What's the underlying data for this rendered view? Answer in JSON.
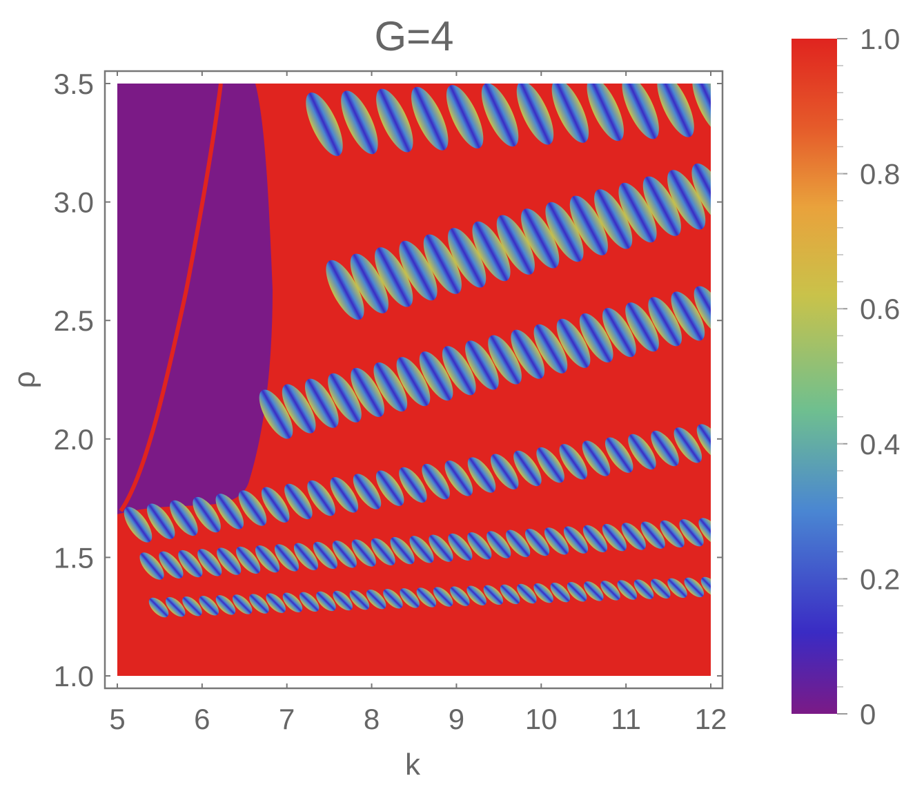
{
  "chart_data": {
    "type": "heatmap",
    "title": "G=4",
    "xlabel": "k",
    "ylabel": "ρ",
    "xlim": [
      5,
      12
    ],
    "ylim": [
      1.0,
      3.5
    ],
    "x_ticks": [
      "5",
      "6",
      "7",
      "8",
      "9",
      "10",
      "11",
      "12"
    ],
    "y_ticks": [
      "1.0",
      "1.5",
      "2.0",
      "2.5",
      "3.0",
      "3.5"
    ],
    "colorbar": {
      "range": [
        0,
        1.0
      ],
      "ticks": [
        "0",
        "0.2",
        "0.4",
        "0.6",
        "0.8",
        "1.0"
      ],
      "colors": [
        "#7b1a86",
        "#3a2bc4",
        "#4a86d2",
        "#6fbf8f",
        "#c9c24a",
        "#e9a23c",
        "#e55a2a",
        "#e0241f"
      ]
    },
    "grid": false
  }
}
